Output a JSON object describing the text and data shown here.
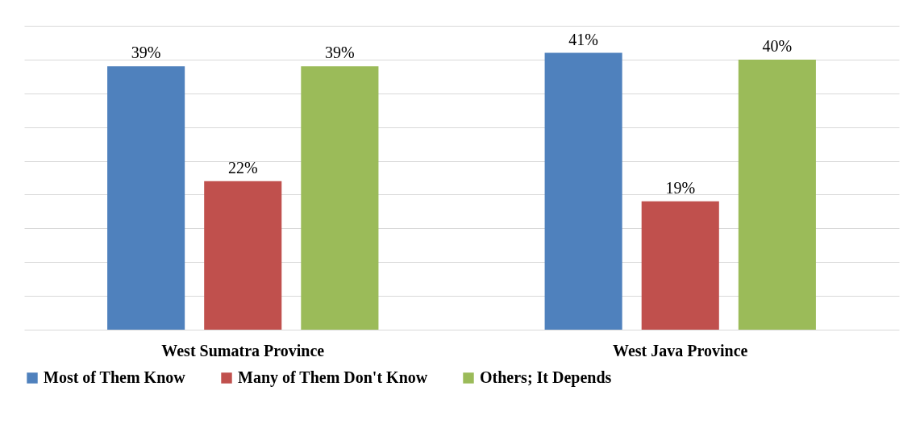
{
  "chart_data": {
    "type": "bar",
    "categories": [
      "West Sumatra Province",
      "West Java Province"
    ],
    "series": [
      {
        "name": "Most of Them Know",
        "color": "#4f81bd",
        "values": [
          39,
          41
        ],
        "value_labels": [
          "39%",
          "41%"
        ]
      },
      {
        "name": "Many of Them Don't Know",
        "color": "#c0504d",
        "values": [
          22,
          19
        ],
        "value_labels": [
          "22%",
          "19%"
        ]
      },
      {
        "name": "Others; It Depends",
        "color": "#9bbb59",
        "values": [
          39,
          40
        ],
        "value_labels": [
          "39%",
          "40%"
        ]
      }
    ],
    "ylim": [
      0,
      45
    ],
    "yticks": [
      {
        "value": 0,
        "label": null
      },
      {
        "value": 5,
        "label": null
      },
      {
        "value": 10,
        "label": null
      },
      {
        "value": 15,
        "label": null
      },
      {
        "value": 20,
        "label": null
      },
      {
        "value": 25,
        "label": null
      },
      {
        "value": 30,
        "label": null
      },
      {
        "value": 35,
        "label": null
      },
      {
        "value": 40,
        "label": null
      },
      {
        "value": 45,
        "label": null
      }
    ],
    "tick_labels": "x",
    "grid": "y",
    "legend": "bottom"
  }
}
